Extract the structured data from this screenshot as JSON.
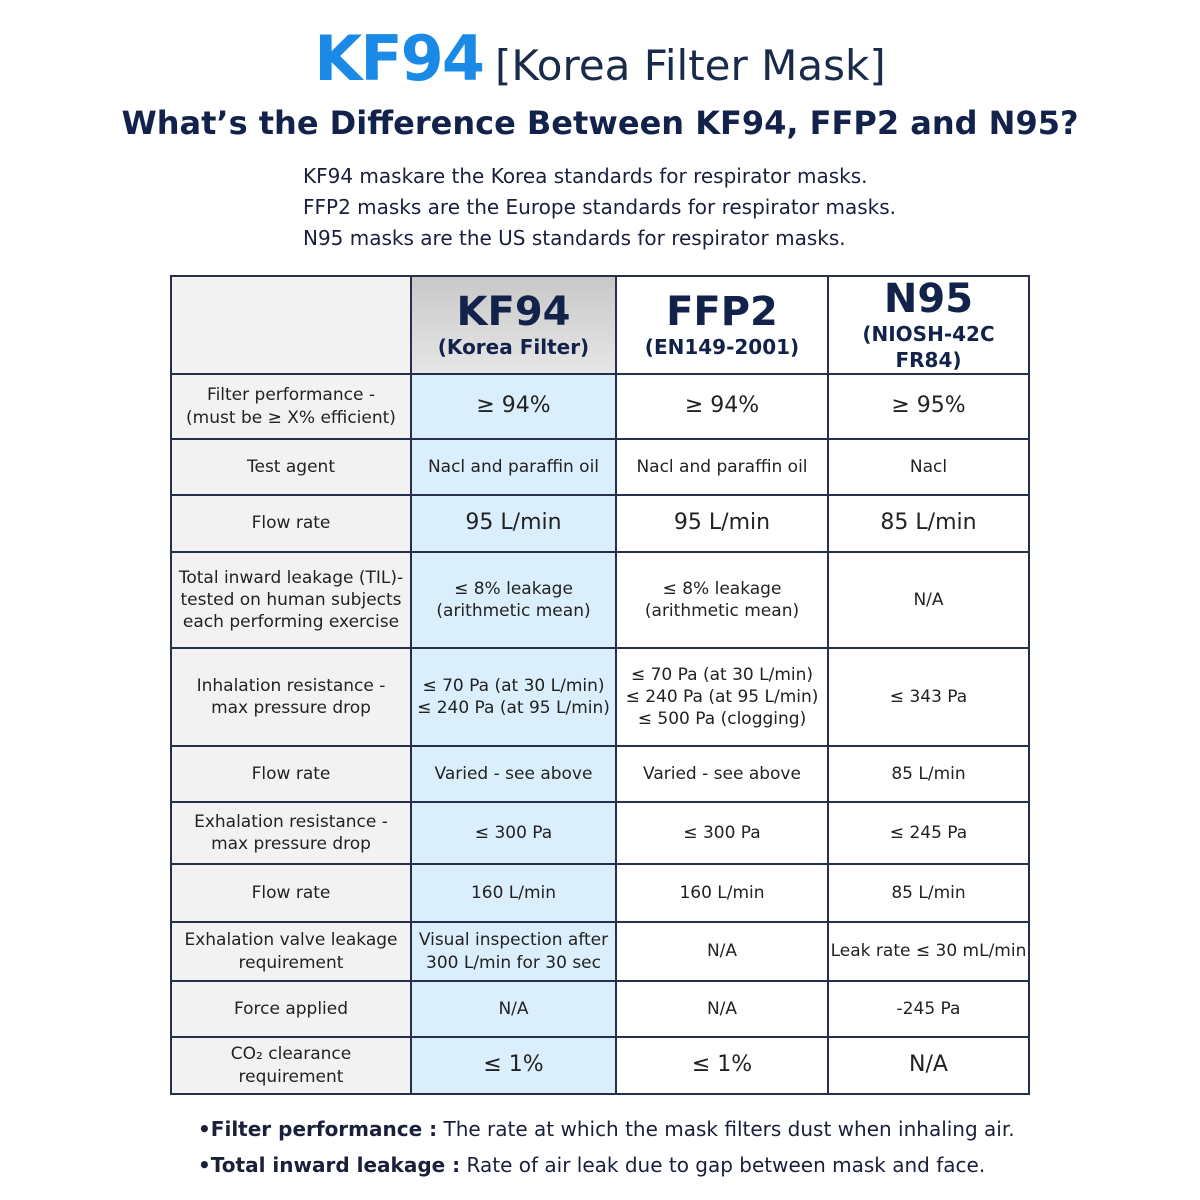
{
  "header": {
    "title_main": "KF94",
    "title_rest": "[Korea Filter Mask]",
    "subtitle": "What’s the Difference Between KF94, FFP2 and N95?",
    "intro": [
      "KF94 maskare the Korea standards for respirator masks.",
      "FFP2 masks are the Europe standards for respirator masks.",
      "N95 masks are the US standards for respirator masks."
    ]
  },
  "table": {
    "columns": [
      {
        "name": "KF94",
        "sub": "(Korea Filter)"
      },
      {
        "name": "FFP2",
        "sub": "(EN149-2001)"
      },
      {
        "name": "N95",
        "sub": "(NIOSH-42C FR84)"
      }
    ],
    "rows": [
      [
        [
          "Filter performance -",
          "(must be ≥ X% efficient)"
        ],
        [
          "≥ 94%"
        ],
        [
          "≥ 94%"
        ],
        [
          "≥ 95%"
        ]
      ],
      [
        [
          "Test agent"
        ],
        [
          "Nacl and paraffin oil"
        ],
        [
          "Nacl and paraffin oil"
        ],
        [
          "Nacl"
        ]
      ],
      [
        [
          "Flow rate"
        ],
        [
          "95 L/min"
        ],
        [
          "95 L/min"
        ],
        [
          "85 L/min"
        ]
      ],
      [
        [
          "Total inward leakage (TIL)-",
          "tested on human subjects",
          "each performing exercise"
        ],
        [
          "≤ 8% leakage",
          "(arithmetic mean)"
        ],
        [
          "≤ 8% leakage",
          "(arithmetic mean)"
        ],
        [
          "N/A"
        ]
      ],
      [
        [
          "Inhalation resistance -",
          "max pressure drop"
        ],
        [
          "≤ 70 Pa (at 30 L/min)",
          "≤ 240 Pa (at 95 L/min)"
        ],
        [
          "≤ 70 Pa (at 30 L/min)",
          "≤ 240 Pa (at 95 L/min)",
          "≤ 500 Pa (clogging)"
        ],
        [
          "≤ 343 Pa"
        ]
      ],
      [
        [
          "Flow rate"
        ],
        [
          "Varied - see above"
        ],
        [
          "Varied - see above"
        ],
        [
          "85 L/min"
        ]
      ],
      [
        [
          "Exhalation resistance -",
          "max pressure drop"
        ],
        [
          "≤ 300 Pa"
        ],
        [
          "≤ 300 Pa"
        ],
        [
          "≤ 245 Pa"
        ]
      ],
      [
        [
          "Flow rate"
        ],
        [
          "160 L/min"
        ],
        [
          "160 L/min"
        ],
        [
          "85 L/min"
        ]
      ],
      [
        [
          "Exhalation valve leakage",
          "requirement"
        ],
        [
          "Visual inspection after",
          "300 L/min for 30 sec"
        ],
        [
          "N/A"
        ],
        [
          "Leak rate ≤ 30 mL/min"
        ]
      ],
      [
        [
          "Force applied"
        ],
        [
          "N/A"
        ],
        [
          "N/A"
        ],
        [
          "-245 Pa"
        ]
      ],
      [
        [
          "CO₂ clearance",
          "requirement"
        ],
        [
          "≤ 1%"
        ],
        [
          "≤ 1%"
        ],
        [
          "N/A"
        ]
      ]
    ]
  },
  "footnotes": [
    {
      "term": "Filter performance :",
      "text": " The rate at which the mask filters dust when inhaling air."
    },
    {
      "term": "Total inward leakage :",
      "text": " Rate of air leak due to gap between mask and face."
    }
  ]
}
